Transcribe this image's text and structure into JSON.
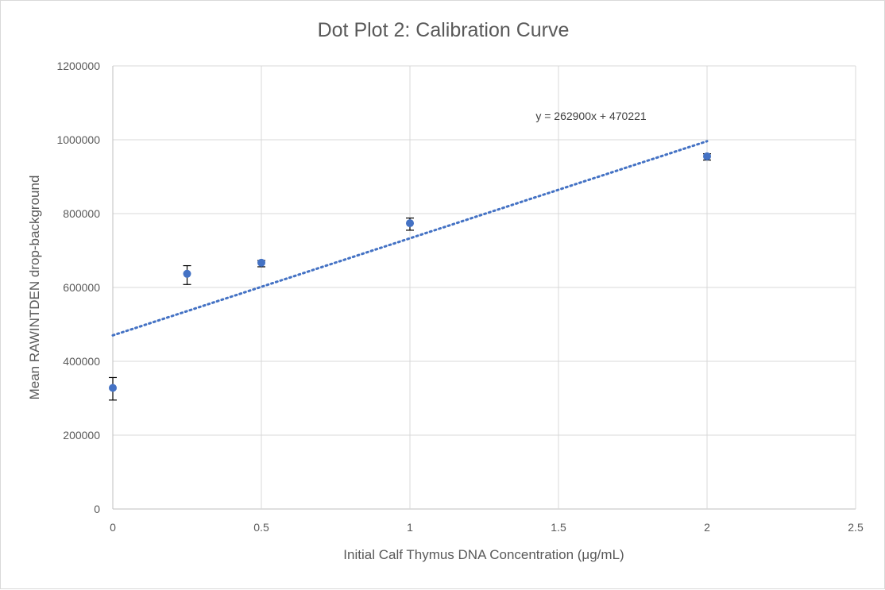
{
  "chart_data": {
    "type": "scatter",
    "title": "Dot Plot 2: Calibration Curve",
    "xlabel": "Initial Calf Thymus DNA Concentration (μg/mL)",
    "ylabel": "Mean RAWINTDEN drop-background",
    "xlim": [
      0,
      2.5
    ],
    "ylim": [
      0,
      1200000
    ],
    "x_ticks": [
      "0",
      "0.5",
      "1",
      "1.5",
      "2",
      "2.5"
    ],
    "x_tick_values": [
      0,
      0.5,
      1,
      1.5,
      2,
      2.5
    ],
    "y_ticks": [
      "0",
      "200000",
      "400000",
      "600000",
      "800000",
      "1000000",
      "1200000"
    ],
    "y_tick_values": [
      0,
      200000,
      400000,
      600000,
      800000,
      1000000,
      1200000
    ],
    "grid": true,
    "series": [
      {
        "x": [
          0,
          0.25,
          0.5,
          1,
          2
        ],
        "y": [
          328000,
          637000,
          667000,
          774000,
          955000
        ],
        "error_low": [
          295000,
          608000,
          656000,
          755000,
          945000
        ],
        "error_high": [
          356000,
          659000,
          673000,
          788000,
          962000
        ],
        "color": "#4472c4"
      }
    ],
    "trendline": {
      "type": "linear",
      "slope": 262900,
      "intercept": 470221,
      "x_range": [
        0,
        2
      ],
      "equation": "y = 262900x + 470221",
      "color": "#4472c4"
    }
  }
}
